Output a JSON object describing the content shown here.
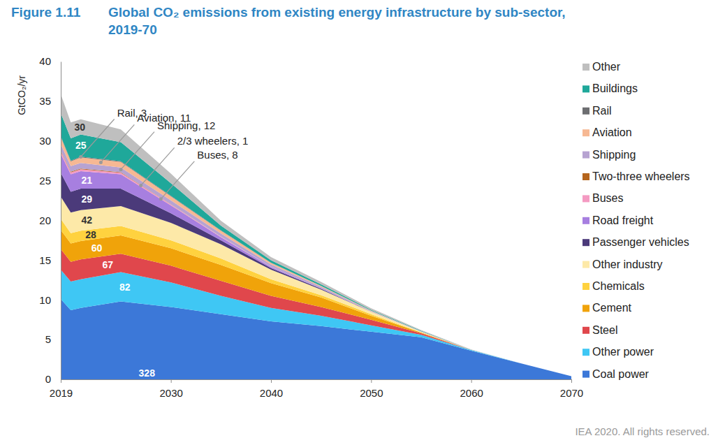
{
  "chart_data": {
    "type": "area",
    "stacked": true,
    "figure_number": "Figure 1.11",
    "title": "Global CO₂ emissions from existing energy infrastructure by sub-sector, 2019-70",
    "y_label": "GtCO₂/yr",
    "source": "IEA 2020. All rights reserved.",
    "x": [
      2019,
      2020,
      2021,
      2025,
      2030,
      2035,
      2040,
      2045,
      2050,
      2055,
      2060,
      2065,
      2070
    ],
    "xlim": [
      2019,
      2070
    ],
    "xticks": [
      2019,
      2030,
      2040,
      2050,
      2060,
      2070
    ],
    "ylim": [
      0,
      40
    ],
    "yticks": [
      0,
      5,
      10,
      15,
      20,
      25,
      30,
      35,
      40
    ],
    "grid": false,
    "legend": "right",
    "series": [
      {
        "name": "Coal power",
        "color": "#3c78d8",
        "total": 328,
        "values": [
          10.1,
          8.7,
          9.0,
          9.8,
          9.1,
          8.2,
          7.3,
          6.7,
          6.0,
          5.3,
          3.6,
          2.0,
          0.4
        ]
      },
      {
        "name": "Other power",
        "color": "#3fc7f4",
        "total": 82,
        "values": [
          3.7,
          3.6,
          3.6,
          3.7,
          3.1,
          2.3,
          1.7,
          1.3,
          0.8,
          0.3,
          0.1,
          0,
          0
        ]
      },
      {
        "name": "Steel",
        "color": "#e0474c",
        "total": 67,
        "values": [
          2.6,
          2.5,
          2.5,
          2.3,
          2.1,
          1.9,
          1.5,
          1.1,
          0.7,
          0.2,
          0,
          0,
          0
        ]
      },
      {
        "name": "Cement",
        "color": "#f0a30a",
        "total": 60,
        "values": [
          2.4,
          2.3,
          2.3,
          2.3,
          2.2,
          2.0,
          1.6,
          1.2,
          0.5,
          0.1,
          0,
          0,
          0
        ]
      },
      {
        "name": "Chemicals",
        "color": "#ffd23f",
        "total": 28,
        "values": [
          1.4,
          1.3,
          1.3,
          1.2,
          1.0,
          0.8,
          0.5,
          0.3,
          0.2,
          0,
          0,
          0,
          0
        ]
      },
      {
        "name": "Other industry",
        "color": "#fde9a8",
        "total": 42,
        "values": [
          2.8,
          2.6,
          2.6,
          2.5,
          2.2,
          1.8,
          1.2,
          0.7,
          0.3,
          0.1,
          0,
          0,
          0
        ]
      },
      {
        "name": "Passenger vehicles",
        "color": "#4b3a7a",
        "total": 29,
        "values": [
          3.0,
          2.6,
          2.7,
          2.2,
          1.2,
          0.5,
          0.2,
          0.1,
          0,
          0,
          0,
          0,
          0
        ]
      },
      {
        "name": "Road freight",
        "color": "#a77fe0",
        "total": 21,
        "values": [
          2.4,
          2.2,
          2.2,
          1.8,
          1.0,
          0.4,
          0.15,
          0.05,
          0,
          0,
          0,
          0,
          0
        ]
      },
      {
        "name": "Buses",
        "color": "#f49ac2",
        "values": [
          0.3,
          0.25,
          0.25,
          0.2,
          0.1,
          0.05,
          0.02,
          0,
          0,
          0,
          0,
          0,
          0
        ]
      },
      {
        "name": "Two-three wheelers",
        "color": "#b5651d",
        "values": [
          0.1,
          0.08,
          0.08,
          0.06,
          0.03,
          0.01,
          0,
          0,
          0,
          0,
          0,
          0,
          0
        ]
      },
      {
        "name": "Shipping",
        "color": "#b7a3d1",
        "values": [
          0.8,
          0.7,
          0.7,
          0.6,
          0.5,
          0.4,
          0.3,
          0.2,
          0.1,
          0.05,
          0,
          0,
          0
        ]
      },
      {
        "name": "Aviation",
        "color": "#f6b893",
        "values": [
          0.9,
          0.6,
          0.7,
          0.7,
          0.5,
          0.35,
          0.2,
          0.1,
          0.05,
          0,
          0,
          0,
          0
        ]
      },
      {
        "name": "Rail",
        "color": "#6d6e71",
        "values": [
          0.1,
          0.09,
          0.09,
          0.08,
          0.06,
          0.04,
          0.02,
          0.01,
          0,
          0,
          0,
          0,
          0
        ]
      },
      {
        "name": "Buildings",
        "color": "#1fa89a",
        "total": 25,
        "values": [
          2.9,
          2.8,
          2.8,
          2.4,
          1.6,
          0.6,
          0.3,
          0.2,
          0.1,
          0.05,
          0,
          0,
          0
        ]
      },
      {
        "name": "Other",
        "color": "#bfbfbf",
        "total": 30,
        "values": [
          2.4,
          2.0,
          1.9,
          1.6,
          1.2,
          0.6,
          0.4,
          0.3,
          0.2,
          0.1,
          0.05,
          0,
          0
        ]
      }
    ],
    "annotations": [
      {
        "text": "Rail, 3",
        "x": 2021,
        "y": 28.0
      },
      {
        "text": "Aviation, 11",
        "x": 2023,
        "y": 27.3
      },
      {
        "text": "Shipping, 12",
        "x": 2025,
        "y": 26.4
      },
      {
        "text": "2/3 wheelers, 1",
        "x": 2027,
        "y": 24.4
      },
      {
        "text": "Buses, 8",
        "x": 2029,
        "y": 22.7
      }
    ]
  }
}
